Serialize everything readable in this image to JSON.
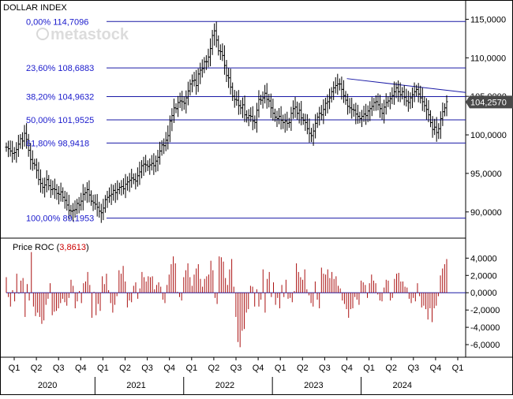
{
  "title": "DOLLAR INDEX",
  "watermark": "metastock",
  "colors": {
    "bars": "#000000",
    "fib_lines": "#1a1aa6",
    "fib_labels": "#1a1acc",
    "roc_bars": "#aa1111",
    "roc_value": "#cc0000",
    "last_price_bg": "#4a4a4a",
    "axis": "#000000"
  },
  "chart_data": [
    {
      "type": "ohlc",
      "title": "DOLLAR INDEX",
      "ylim": [
        86.6,
        117.5
      ],
      "yticks": [
        90,
        95,
        100,
        105,
        110,
        115
      ],
      "ytick_labels": [
        "90,0000",
        "95,0000",
        "100,0000",
        "105,0000",
        "110,0000",
        "115,0000"
      ],
      "last_price": 104.257,
      "last_price_label": "104,2570",
      "fib_levels": [
        {
          "label": "0,00% 114,7096",
          "value": 114.7096
        },
        {
          "label": "23,60% 108,6883",
          "value": 108.6883
        },
        {
          "label": "38,20% 104,9632",
          "value": 104.9632
        },
        {
          "label": "50,00% 101,9525",
          "value": 101.9525
        },
        {
          "label": "61,80% 98,9418",
          "value": 98.9418
        },
        {
          "label": "100,00% 89,1953",
          "value": 89.1953
        }
      ],
      "trendline": {
        "start": [
          "2023 Q4",
          107.3
        ],
        "end": [
          "2025 Q1",
          105.5
        ]
      },
      "series": [
        {
          "values": [
            98.4,
            98.2,
            97.9,
            97.6,
            97.7,
            98.1,
            98.8,
            99.5,
            99.2,
            100.2,
            99.4,
            98.0,
            96.8,
            96.3,
            96.1,
            95.4,
            94.2,
            93.7,
            93.2,
            93.5,
            94.2,
            93.4,
            92.9,
            93.0,
            92.9,
            92.4,
            92.3,
            92.6,
            91.9,
            91.5,
            90.9,
            90.2,
            90.1,
            90.2,
            90.3,
            91.1,
            90.9,
            91.4,
            92.3,
            92.5,
            92.9,
            92.2,
            91.4,
            91.2,
            91.0,
            90.6,
            90.1,
            89.9,
            90.5,
            91.6,
            91.9,
            92.1,
            92.3,
            92.8,
            92.5,
            92.9,
            93.2,
            93.3,
            93.0,
            93.6,
            93.9,
            94.1,
            94.4,
            94.2,
            94.0,
            94.7,
            95.2,
            96.0,
            96.2,
            96.1,
            95.9,
            96.1,
            96.3,
            96.0,
            96.6,
            97.1,
            97.9,
            98.7,
            98.6,
            99.3,
            99.9,
            101.8,
            102.5,
            103.5,
            103.4,
            104.2,
            104.4,
            104.3,
            104.1,
            104.8,
            105.7,
            106.6,
            107.0,
            107.1,
            106.4,
            107.9,
            108.4,
            108.6,
            109.5,
            109.5,
            110.1,
            111.2,
            112.9,
            113.5,
            112.3,
            110.9,
            110.8,
            110.3,
            109.0,
            107.7,
            107.4,
            106.2,
            105.0,
            104.6,
            104.5,
            103.8,
            103.5,
            103.9,
            102.6,
            102.2,
            102.5,
            102.4,
            101.8,
            101.6,
            103.2,
            104.6,
            104.5,
            104.8,
            105.4,
            104.6,
            104.4,
            103.5,
            102.8,
            102.3,
            102.1,
            102.4,
            101.9,
            101.6,
            101.8,
            101.5,
            101.6,
            102.8,
            103.4,
            103.6,
            102.8,
            103.2,
            102.2,
            101.9,
            101.6,
            100.8,
            100.2,
            99.9,
            100.5,
            101.5,
            102.3,
            102.8,
            102.6,
            103.3,
            104.1,
            104.3,
            104.8,
            105.6,
            106.1,
            106.4,
            106.6,
            106.6,
            105.9,
            105.1,
            104.5,
            103.7,
            103.5,
            103.3,
            103.2,
            102.7,
            102.4,
            102.1,
            102.4,
            102.7,
            102.5,
            103.1,
            103.4,
            103.7,
            104.2,
            104.3,
            103.9,
            103.4,
            102.8,
            103.6,
            104.2,
            104.4,
            104.7,
            105.1,
            105.6,
            106.1,
            105.6,
            105.2,
            105.6,
            104.9,
            104.4,
            104.2,
            104.8,
            105.2,
            105.6,
            105.9,
            105.3,
            104.8,
            104.3,
            103.8,
            103.3,
            102.6,
            101.6,
            100.7,
            101.0,
            100.3,
            100.8,
            102.1,
            103.0,
            103.5,
            104.3
          ],
          "date_range": [
            "2019 Q4",
            "2024 Q4"
          ]
        }
      ]
    },
    {
      "type": "bar",
      "title": "Price ROC",
      "value_label": "3,8613",
      "ylim": [
        -7.0,
        5.4
      ],
      "yticks": [
        -6,
        -4,
        -2,
        0,
        2,
        4
      ],
      "ytick_labels": [
        "-6,0000",
        "-4,0000",
        "-2,0000",
        "0,0000",
        "2,0000",
        "4,0000"
      ],
      "xticks": [
        "Q1",
        "Q2",
        "Q3",
        "Q4",
        "Q1",
        "Q2",
        "Q3",
        "Q4",
        "Q1",
        "Q2",
        "Q3",
        "Q4",
        "Q1",
        "Q2",
        "Q3",
        "Q4",
        "Q1",
        "Q2",
        "Q3",
        "Q4",
        "Q1"
      ],
      "years": [
        "2020",
        "2021",
        "2022",
        "2023",
        "2024"
      ],
      "series": [
        {
          "values": [
            1.8,
            -0.5,
            -1.6,
            0.3,
            -1.0,
            2.2,
            -0.1,
            1.4,
            1.7,
            -2.8,
            1.0,
            -0.9,
            4.7,
            -1.6,
            -2.7,
            -2.3,
            -2.8,
            -3.6,
            -3.2,
            -1.4,
            -0.7,
            1.1,
            -2.6,
            -2.2,
            -2.1,
            -1.8,
            -1.2,
            -0.7,
            -1.1,
            -1.5,
            -0.6,
            1.5,
            0.8,
            -1.8,
            -1.0,
            0.2,
            -1.2,
            1.1,
            1.3,
            2.4,
            0.9,
            -2.9,
            0.1,
            -2.6,
            -1.3,
            -2.1,
            1.9,
            1.0,
            2.2,
            0.3,
            -1.2,
            -2.3,
            -1.4,
            -0.4,
            2.6,
            2.2,
            3.1,
            1.3,
            -1.7,
            -0.9,
            -1.1,
            0.8,
            1.2,
            -0.7,
            0.5,
            2.4,
            1.8,
            1.3,
            1.9,
            1.8,
            1.9,
            0.4,
            0.9,
            1.2,
            0.7,
            -0.8,
            -1.2,
            0.9,
            2.1,
            3.3,
            4.2,
            3.4,
            0.1,
            -0.5,
            -0.9,
            1.8,
            2.6,
            3.4,
            1.8,
            0.8,
            2.1,
            2.8,
            3.3,
            1.6,
            0.7,
            1.6,
            1.9,
            2.1,
            3.7,
            2.6,
            -0.6,
            -1.3,
            4.2,
            4.1,
            3.6,
            1.7,
            0.9,
            2.7,
            3.9,
            0.7,
            -2.8,
            -5.7,
            -6.3,
            -4.4,
            -4.2,
            -2.3,
            -1.9,
            0.8,
            0.7,
            -1.6,
            0.4,
            -1.6,
            -0.8,
            2.7,
            -2.3,
            1.6,
            2.4,
            -0.5,
            1.2,
            -1.4,
            -0.6,
            -1.8,
            0.9,
            -0.5,
            1.5,
            -0.7,
            -0.6,
            -1.1,
            0.2,
            3.4,
            2.4,
            1.8,
            1.5,
            2.7,
            0.4,
            -0.3,
            -1.2,
            -1.6,
            1.3,
            -0.8,
            -1.8,
            2.9,
            2.2,
            2.1,
            2.7,
            1.7,
            2.4,
            1.6,
            1.9,
            0.8,
            0.5,
            -0.9,
            -1.3,
            -1.9,
            -2.9,
            -1.9,
            -1.8,
            -0.5,
            -0.8,
            -1.4,
            1.4,
            1.2,
            0.9,
            -0.6,
            1.1,
            2.1,
            1.4,
            1.1,
            -0.2,
            -0.9,
            -1.0,
            0.6,
            1.5,
            1.4,
            -0.9,
            -0.6,
            1.6,
            2.2,
            2.3,
            1.3,
            1.3,
            0.7,
            0.6,
            -0.7,
            -1.2,
            -0.6,
            -1.0,
            1.1,
            -0.4,
            -1.7,
            -1.5,
            -1.9,
            -3.1,
            -1.8,
            -3.4,
            -1.8,
            -1.5,
            -0.4,
            2.0,
            2.8,
            3.3,
            3.9
          ],
          "date_range": [
            "2019 Q4",
            "2024 Q4"
          ]
        }
      ]
    }
  ]
}
